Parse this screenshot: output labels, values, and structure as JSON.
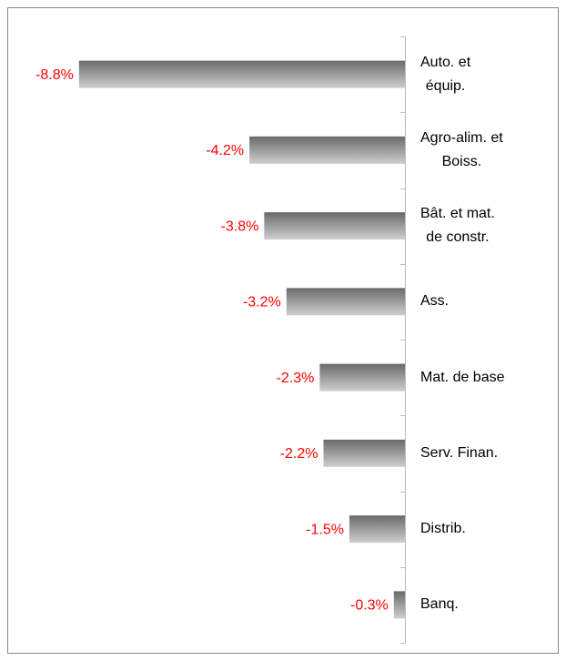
{
  "chart_data": {
    "type": "bar",
    "orientation": "horizontal",
    "categories": [
      [
        "Auto. et",
        "équip."
      ],
      [
        "Agro-alim. et",
        "Boiss."
      ],
      [
        "Bât. et mat.",
        "de constr."
      ],
      [
        "Ass."
      ],
      [
        "Mat. de base"
      ],
      [
        "Serv. Finan."
      ],
      [
        "Distrib."
      ],
      [
        "Banq."
      ]
    ],
    "values": [
      -8.8,
      -4.2,
      -3.8,
      -3.2,
      -2.3,
      -2.2,
      -1.5,
      -0.3
    ],
    "value_labels": [
      "-8.8%",
      "-4.2%",
      "-3.8%",
      "-3.2%",
      "-2.3%",
      "-2.2%",
      "-1.5%",
      "-0.3%"
    ],
    "xlim": [
      -10,
      0
    ],
    "color": "#8c8c8c"
  }
}
